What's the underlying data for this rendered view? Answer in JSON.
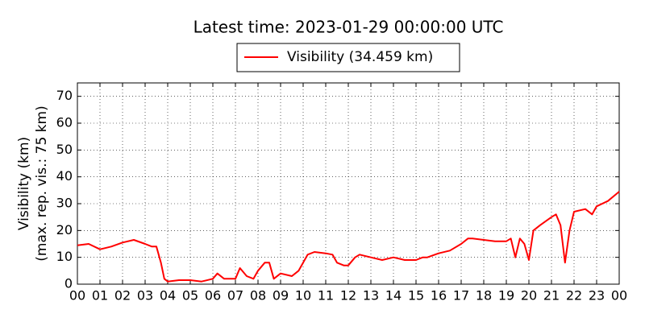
{
  "chart_data": {
    "type": "line",
    "title": "Latest time: 2023-01-29 00:00:00 UTC",
    "ylabel": [
      "Visibility (km)",
      "(max. rep. vis.: 75 km)"
    ],
    "xlim": [
      0,
      24
    ],
    "ylim": [
      0,
      75
    ],
    "xticks": [
      {
        "value": 0,
        "label": "00"
      },
      {
        "value": 1,
        "label": "01"
      },
      {
        "value": 2,
        "label": "02"
      },
      {
        "value": 3,
        "label": "03"
      },
      {
        "value": 4,
        "label": "04"
      },
      {
        "value": 5,
        "label": "05"
      },
      {
        "value": 6,
        "label": "06"
      },
      {
        "value": 7,
        "label": "07"
      },
      {
        "value": 8,
        "label": "08"
      },
      {
        "value": 9,
        "label": "09"
      },
      {
        "value": 10,
        "label": "10"
      },
      {
        "value": 11,
        "label": "11"
      },
      {
        "value": 12,
        "label": "12"
      },
      {
        "value": 13,
        "label": "13"
      },
      {
        "value": 14,
        "label": "14"
      },
      {
        "value": 15,
        "label": "15"
      },
      {
        "value": 16,
        "label": "16"
      },
      {
        "value": 17,
        "label": "17"
      },
      {
        "value": 18,
        "label": "18"
      },
      {
        "value": 19,
        "label": "19"
      },
      {
        "value": 20,
        "label": "20"
      },
      {
        "value": 21,
        "label": "21"
      },
      {
        "value": 22,
        "label": "22"
      },
      {
        "value": 23,
        "label": "23"
      },
      {
        "value": 24,
        "label": "00"
      }
    ],
    "yticks": [
      0,
      10,
      20,
      30,
      40,
      50,
      60,
      70
    ],
    "grid": true,
    "legend": "top",
    "x": [
      0,
      0.5,
      1,
      1.5,
      2,
      2.5,
      3,
      3.3,
      3.5,
      3.7,
      3.85,
      4,
      4.5,
      5,
      5.5,
      6,
      6.2,
      6.5,
      7,
      7.2,
      7.5,
      7.8,
      8,
      8.3,
      8.5,
      8.7,
      9,
      9.5,
      9.8,
      10,
      10.2,
      10.5,
      11,
      11.3,
      11.5,
      11.8,
      12,
      12.3,
      12.5,
      13,
      13.5,
      14,
      14.5,
      15,
      15.3,
      15.5,
      16,
      16.5,
      17,
      17.3,
      17.5,
      18,
      18.5,
      19,
      19.2,
      19.4,
      19.6,
      19.8,
      20,
      20.2,
      20.5,
      21,
      21.2,
      21.4,
      21.6,
      21.8,
      22,
      22.5,
      22.8,
      23,
      23.5,
      24
    ],
    "series": [
      {
        "name": "Visibility (34.459 km)",
        "color": "#ff0000",
        "values": [
          14.5,
          15,
          13,
          14,
          15.5,
          16.5,
          15,
          14,
          14,
          8,
          2,
          1,
          1.5,
          1.5,
          1,
          2,
          4,
          2,
          2,
          6,
          3,
          2,
          5,
          8,
          8,
          2,
          4,
          3,
          5,
          8,
          11,
          12,
          11.5,
          11,
          8,
          7,
          7,
          10,
          11,
          10,
          9,
          10,
          9,
          9,
          10,
          10,
          11.5,
          12.5,
          15,
          17,
          17,
          16.5,
          16,
          16,
          17,
          10,
          17,
          15,
          9,
          20,
          22,
          25,
          26,
          22,
          8,
          20,
          27,
          28,
          26,
          29,
          31,
          34.5
        ]
      }
    ]
  }
}
